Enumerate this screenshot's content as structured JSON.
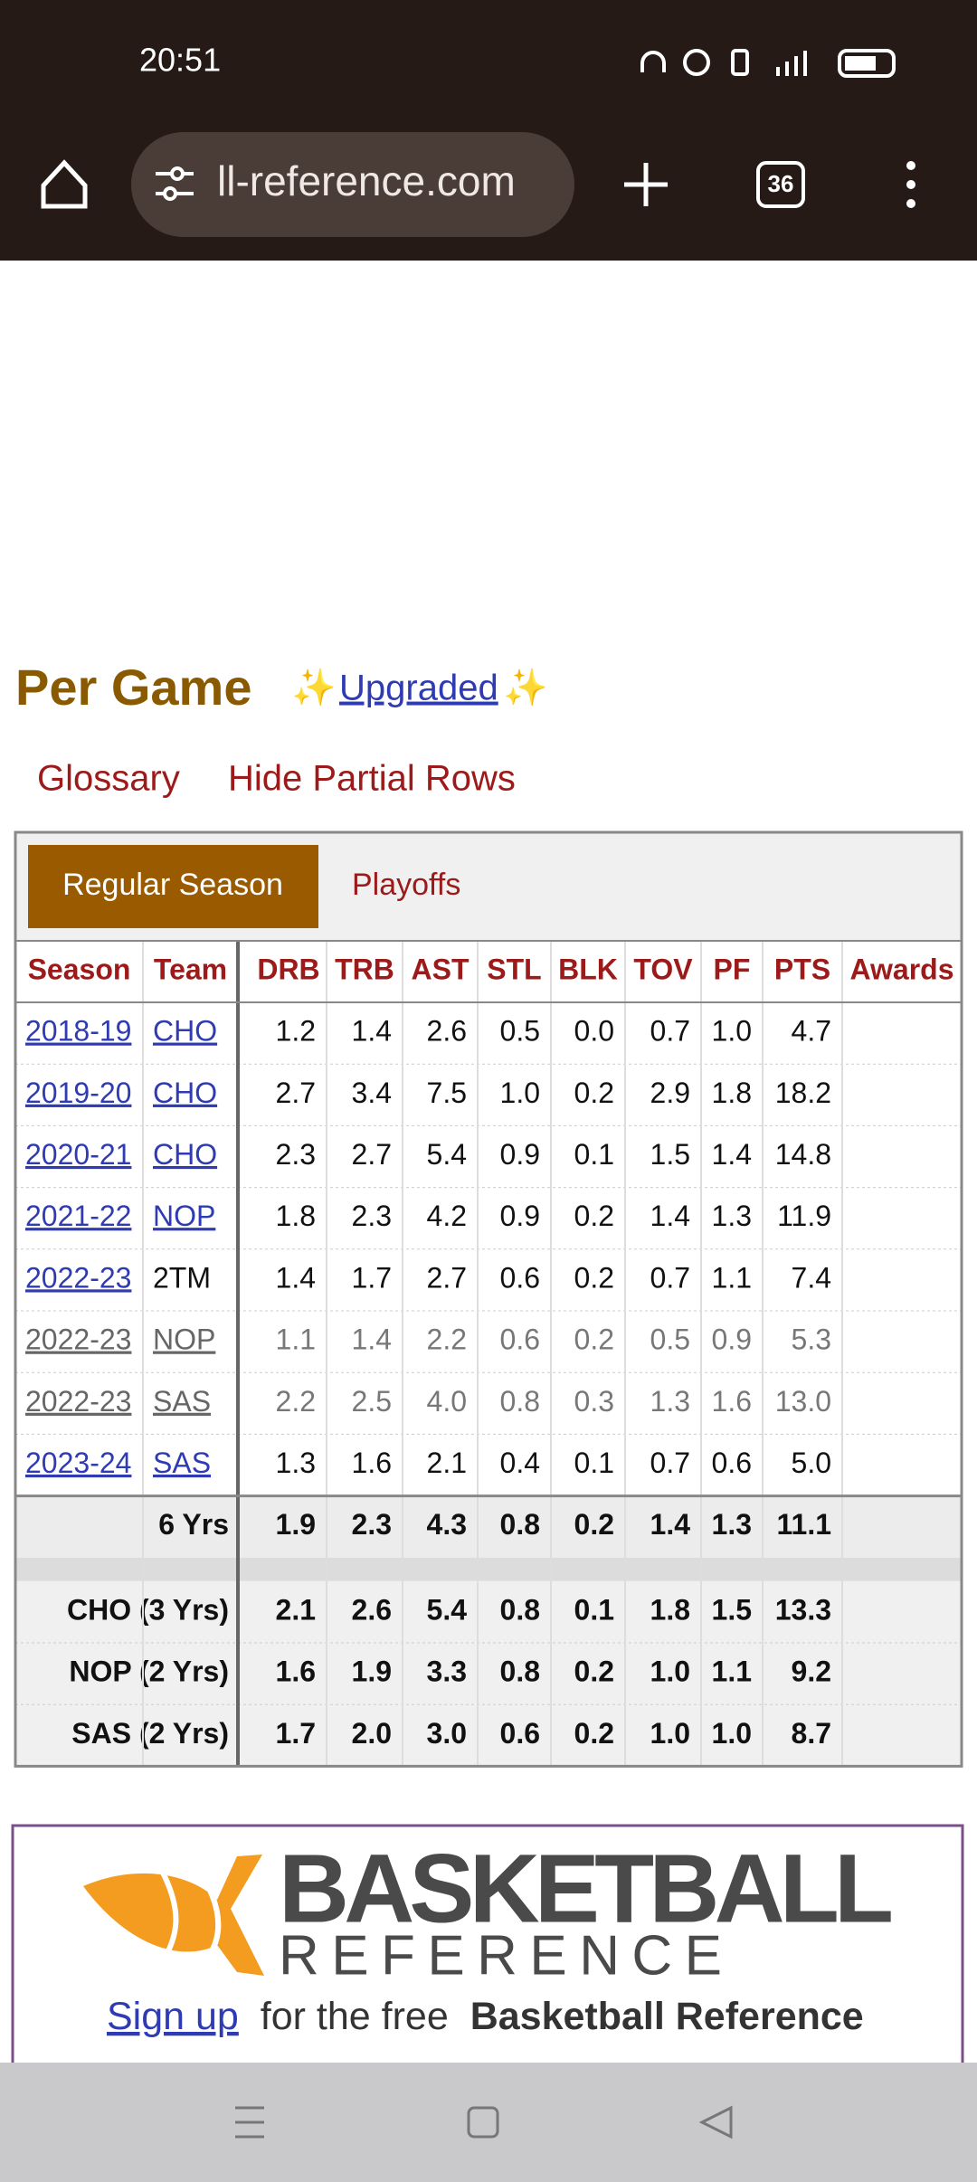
{
  "status": {
    "time": "20:51"
  },
  "browser": {
    "url": "ll-reference.com",
    "tabs": "36"
  },
  "section": {
    "title": "Per Game",
    "sparkle": "✨",
    "upgraded": "Upgraded",
    "links": [
      "Glossary",
      "Hide Partial Rows"
    ],
    "tabs": [
      "Regular Season",
      "Playoffs"
    ]
  },
  "table": {
    "columns": [
      "Season",
      "Team",
      "DRB",
      "TRB",
      "AST",
      "STL",
      "BLK",
      "TOV",
      "PF",
      "PTS",
      "Awards"
    ],
    "rows": [
      {
        "season": "2018-19",
        "team": "CHO",
        "stats": [
          "1.2",
          "1.4",
          "2.6",
          "0.5",
          "0.0",
          "0.7",
          "1.0",
          "4.7"
        ]
      },
      {
        "season": "2019-20",
        "team": "CHO",
        "stats": [
          "2.7",
          "3.4",
          "7.5",
          "1.0",
          "0.2",
          "2.9",
          "1.8",
          "18.2"
        ]
      },
      {
        "season": "2020-21",
        "team": "CHO",
        "stats": [
          "2.3",
          "2.7",
          "5.4",
          "0.9",
          "0.1",
          "1.5",
          "1.4",
          "14.8"
        ]
      },
      {
        "season": "2021-22",
        "team": "NOP",
        "stats": [
          "1.8",
          "2.3",
          "4.2",
          "0.9",
          "0.2",
          "1.4",
          "1.3",
          "11.9"
        ]
      },
      {
        "season": "2022-23",
        "team": "2TM",
        "stats": [
          "1.4",
          "1.7",
          "2.7",
          "0.6",
          "0.2",
          "0.7",
          "1.1",
          "7.4"
        ]
      },
      {
        "season": "2022-23",
        "team": "NOP",
        "partial": true,
        "stats": [
          "1.1",
          "1.4",
          "2.2",
          "0.6",
          "0.2",
          "0.5",
          "0.9",
          "5.3"
        ]
      },
      {
        "season": "2022-23",
        "team": "SAS",
        "partial": true,
        "stats": [
          "2.2",
          "2.5",
          "4.0",
          "0.8",
          "0.3",
          "1.3",
          "1.6",
          "13.0"
        ]
      },
      {
        "season": "2023-24",
        "team": "SAS",
        "stats": [
          "1.3",
          "1.6",
          "2.1",
          "0.4",
          "0.1",
          "0.7",
          "0.6",
          "5.0"
        ]
      }
    ],
    "totals": {
      "label": "6 Yrs",
      "stats": [
        "1.9",
        "2.3",
        "4.3",
        "0.8",
        "0.2",
        "1.4",
        "1.3",
        "11.1"
      ]
    },
    "team_totals": [
      {
        "label": "CHO (3 Yrs)",
        "stats": [
          "2.1",
          "2.6",
          "5.4",
          "0.8",
          "0.1",
          "1.8",
          "1.5",
          "13.3"
        ]
      },
      {
        "label": "NOP (2 Yrs)",
        "stats": [
          "1.6",
          "1.9",
          "3.3",
          "0.8",
          "0.2",
          "1.0",
          "1.1",
          "9.2"
        ]
      },
      {
        "label": "SAS (2 Yrs)",
        "stats": [
          "1.7",
          "2.0",
          "3.0",
          "0.6",
          "0.2",
          "1.0",
          "1.0",
          "8.7"
        ]
      }
    ]
  },
  "footer": {
    "brand": "BASKETBALL",
    "brand_sub": "REFERENCE",
    "signup": "Sign up",
    "signup_text": "for the free",
    "signup_bold": "Basketball Reference"
  }
}
